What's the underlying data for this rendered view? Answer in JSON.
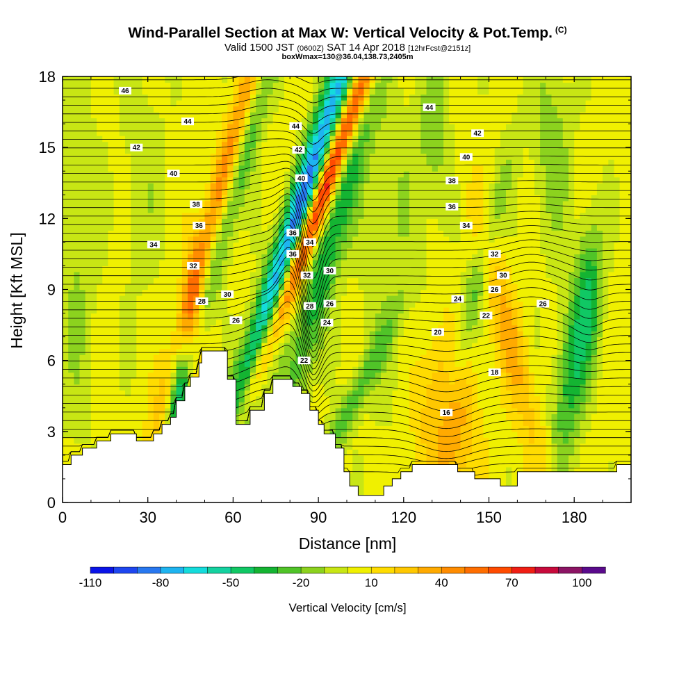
{
  "header": {
    "title": "Wind-Parallel Section at Max W: Vertical Velocity & Pot.Temp.",
    "copyright": "(C)",
    "valid_prefix": "Valid 1500 JST",
    "valid_utc": "(0600Z)",
    "valid_date": "SAT 14 Apr 2018",
    "forecast": "[12hrFcst@2151z]",
    "box_info": "boxWmax=130@36.04,138.73,2405m"
  },
  "chart_data": {
    "type": "heatmap",
    "xlabel": "Distance [nm]",
    "ylabel": "Height [Kft MSL]",
    "xlim": [
      0,
      200
    ],
    "ylim": [
      0,
      18
    ],
    "x_ticks": [
      0,
      30,
      60,
      90,
      120,
      150,
      180
    ],
    "y_ticks": [
      0,
      3,
      6,
      9,
      12,
      15,
      18
    ],
    "colorbar": {
      "title": "Vertical Velocity [cm/s]",
      "levels": [
        -110,
        -100,
        -90,
        -80,
        -70,
        -60,
        -50,
        -40,
        -30,
        -20,
        -10,
        0,
        10,
        20,
        30,
        40,
        50,
        60,
        70,
        80,
        90,
        100,
        110
      ],
      "labels": [
        -110,
        -80,
        -50,
        -20,
        10,
        40,
        70,
        100
      ],
      "colors": [
        "#0a14e8",
        "#1e46f0",
        "#2878f0",
        "#1eb4f0",
        "#14dcdc",
        "#14d2a0",
        "#10c864",
        "#14b432",
        "#50c428",
        "#8cd21e",
        "#c8e614",
        "#f0f000",
        "#ffdc00",
        "#ffc800",
        "#ffaa00",
        "#ff8c00",
        "#ff6e00",
        "#ff4b00",
        "#f01e14",
        "#c80a3c",
        "#8c1464",
        "#5a0a8c"
      ]
    },
    "terrain_kft": [
      [
        0,
        1.6
      ],
      [
        3,
        1.6
      ],
      [
        3,
        2.0
      ],
      [
        7,
        2.0
      ],
      [
        7,
        2.3
      ],
      [
        12,
        2.3
      ],
      [
        12,
        2.6
      ],
      [
        17,
        2.6
      ],
      [
        17,
        2.9
      ],
      [
        26,
        2.9
      ],
      [
        26,
        2.6
      ],
      [
        32,
        2.6
      ],
      [
        32,
        2.9
      ],
      [
        35,
        2.9
      ],
      [
        35,
        3.3
      ],
      [
        38,
        3.3
      ],
      [
        38,
        3.6
      ],
      [
        40,
        3.6
      ],
      [
        40,
        4.3
      ],
      [
        43,
        4.3
      ],
      [
        43,
        4.9
      ],
      [
        45,
        4.9
      ],
      [
        45,
        5.3
      ],
      [
        48,
        5.3
      ],
      [
        48,
        5.9
      ],
      [
        49,
        5.9
      ],
      [
        49,
        6.4
      ],
      [
        58,
        6.4
      ],
      [
        58,
        5.2
      ],
      [
        61,
        5.2
      ],
      [
        61,
        3.3
      ],
      [
        66,
        3.3
      ],
      [
        66,
        3.9
      ],
      [
        71,
        3.9
      ],
      [
        71,
        4.6
      ],
      [
        74,
        4.6
      ],
      [
        74,
        5.2
      ],
      [
        81,
        5.2
      ],
      [
        81,
        4.9
      ],
      [
        84,
        4.9
      ],
      [
        84,
        4.6
      ],
      [
        87,
        4.6
      ],
      [
        87,
        3.9
      ],
      [
        90,
        3.9
      ],
      [
        90,
        3.3
      ],
      [
        92,
        3.3
      ],
      [
        92,
        2.9
      ],
      [
        96,
        2.9
      ],
      [
        96,
        2.3
      ],
      [
        99,
        2.3
      ],
      [
        99,
        1.3
      ],
      [
        101,
        1.3
      ],
      [
        101,
        0.7
      ],
      [
        104,
        0.7
      ],
      [
        104,
        0.3
      ],
      [
        113,
        0.3
      ],
      [
        113,
        0.7
      ],
      [
        116,
        0.7
      ],
      [
        116,
        1.0
      ],
      [
        119,
        1.0
      ],
      [
        119,
        1.3
      ],
      [
        123,
        1.3
      ],
      [
        123,
        1.6
      ],
      [
        139,
        1.6
      ],
      [
        139,
        1.3
      ],
      [
        145,
        1.3
      ],
      [
        145,
        1.0
      ],
      [
        154,
        1.0
      ],
      [
        154,
        0.7
      ],
      [
        160,
        0.7
      ],
      [
        160,
        1.3
      ],
      [
        195,
        1.3
      ],
      [
        195,
        1.6
      ],
      [
        200,
        1.6
      ]
    ],
    "w_features": [
      {
        "x": 55,
        "z": 13,
        "sx": 3.0,
        "sz": 8,
        "tilt": 0.22,
        "w": 45
      },
      {
        "x": 61,
        "z": 13.5,
        "sx": 3.0,
        "sz": 8,
        "tilt": 0.22,
        "w": -35
      },
      {
        "x": 77,
        "z": 9.5,
        "sx": 4.0,
        "sz": 9,
        "tilt": 0.25,
        "w": -110
      },
      {
        "x": 85,
        "z": 11,
        "sx": 3.0,
        "sz": 8,
        "tilt": 0.3,
        "w": 115
      },
      {
        "x": 94,
        "z": 11,
        "sx": 4.0,
        "sz": 6,
        "tilt": 0.2,
        "w": -45
      },
      {
        "x": 101,
        "z": 4,
        "sx": 3.0,
        "sz": 3,
        "tilt": 0.4,
        "w": -30
      },
      {
        "x": 46,
        "z": 8,
        "sx": 2.5,
        "sz": 2.5,
        "tilt": 0,
        "w": 25
      },
      {
        "x": 41,
        "z": 4,
        "sx": 2.5,
        "sz": 2.0,
        "tilt": 0,
        "w": -40
      },
      {
        "x": 135,
        "z": 3.5,
        "sx": 7.0,
        "sz": 2.5,
        "tilt": 0,
        "w": 38
      },
      {
        "x": 157,
        "z": 7,
        "sx": 4.0,
        "sz": 4,
        "tilt": -0.2,
        "w": 28
      },
      {
        "x": 145,
        "z": 9,
        "sx": 3.0,
        "sz": 4,
        "tilt": 0.2,
        "w": -28
      },
      {
        "x": 180,
        "z": 6,
        "sx": 4.0,
        "sz": 3,
        "tilt": 0.1,
        "w": -45
      },
      {
        "x": 186,
        "z": 9,
        "sx": 3.0,
        "sz": 2,
        "tilt": 0,
        "w": -25
      },
      {
        "x": 131,
        "z": 15.5,
        "sx": 4.0,
        "sz": 2.5,
        "tilt": 0,
        "w": -20
      },
      {
        "x": 172,
        "z": 15,
        "sx": 5.0,
        "sz": 3,
        "tilt": 0,
        "w": -20
      },
      {
        "x": 5,
        "z": 11,
        "sx": 5.0,
        "sz": 6,
        "tilt": 0,
        "w": -15
      },
      {
        "x": 115,
        "z": 12,
        "sx": 8.0,
        "sz": 6,
        "tilt": 0,
        "w": -12
      },
      {
        "x": 28,
        "z": 14,
        "sx": 6.0,
        "sz": 4,
        "tilt": 0,
        "w": -10
      }
    ],
    "theta_contours": [
      {
        "label": "16",
        "x": 135,
        "z": 3.8
      },
      {
        "label": "18",
        "x": 152,
        "z": 5.5
      },
      {
        "label": "20",
        "x": 132,
        "z": 7.2
      },
      {
        "label": "22",
        "x": 149,
        "z": 7.9
      },
      {
        "label": "22",
        "x": 85,
        "z": 6.0
      },
      {
        "label": "24",
        "x": 93,
        "z": 7.6
      },
      {
        "label": "24",
        "x": 139,
        "z": 8.6
      },
      {
        "label": "26",
        "x": 61,
        "z": 7.7
      },
      {
        "label": "26",
        "x": 94,
        "z": 8.4
      },
      {
        "label": "26",
        "x": 169,
        "z": 8.4
      },
      {
        "label": "26",
        "x": 152,
        "z": 9.0
      },
      {
        "label": "28",
        "x": 49,
        "z": 8.5
      },
      {
        "label": "28",
        "x": 87,
        "z": 8.3
      },
      {
        "label": "30",
        "x": 58,
        "z": 8.8
      },
      {
        "label": "30",
        "x": 94,
        "z": 9.8
      },
      {
        "label": "30",
        "x": 155,
        "z": 9.6
      },
      {
        "label": "32",
        "x": 46,
        "z": 10.0
      },
      {
        "label": "32",
        "x": 86,
        "z": 9.6
      },
      {
        "label": "32",
        "x": 152,
        "z": 10.5
      },
      {
        "label": "34",
        "x": 32,
        "z": 10.9
      },
      {
        "label": "34",
        "x": 87,
        "z": 11.0
      },
      {
        "label": "34",
        "x": 142,
        "z": 11.7
      },
      {
        "label": "36",
        "x": 48,
        "z": 11.7
      },
      {
        "label": "36",
        "x": 81,
        "z": 10.5
      },
      {
        "label": "36",
        "x": 81,
        "z": 11.4
      },
      {
        "label": "36",
        "x": 137,
        "z": 12.5
      },
      {
        "label": "38",
        "x": 47,
        "z": 12.6
      },
      {
        "label": "38",
        "x": 137,
        "z": 13.6
      },
      {
        "label": "40",
        "x": 39,
        "z": 13.9
      },
      {
        "label": "40",
        "x": 84,
        "z": 13.7
      },
      {
        "label": "40",
        "x": 142,
        "z": 14.6
      },
      {
        "label": "42",
        "x": 26,
        "z": 15.0
      },
      {
        "label": "42",
        "x": 83,
        "z": 14.9
      },
      {
        "label": "42",
        "x": 146,
        "z": 15.6
      },
      {
        "label": "44",
        "x": 44,
        "z": 16.1
      },
      {
        "label": "44",
        "x": 82,
        "z": 15.9
      },
      {
        "label": "44",
        "x": 129,
        "z": 16.7
      },
      {
        "label": "46",
        "x": 22,
        "z": 17.4
      }
    ]
  }
}
